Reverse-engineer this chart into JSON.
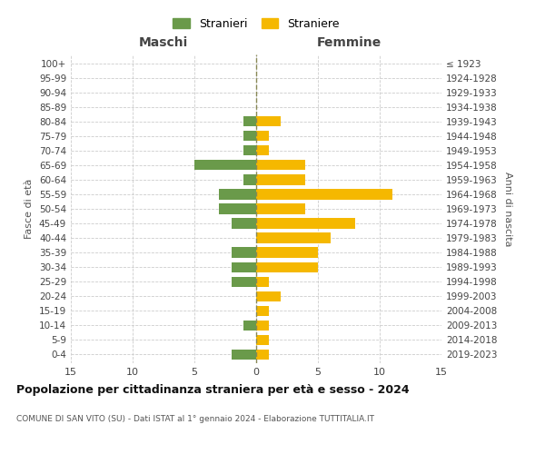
{
  "age_groups": [
    "0-4",
    "5-9",
    "10-14",
    "15-19",
    "20-24",
    "25-29",
    "30-34",
    "35-39",
    "40-44",
    "45-49",
    "50-54",
    "55-59",
    "60-64",
    "65-69",
    "70-74",
    "75-79",
    "80-84",
    "85-89",
    "90-94",
    "95-99",
    "100+"
  ],
  "birth_years": [
    "2019-2023",
    "2014-2018",
    "2009-2013",
    "2004-2008",
    "1999-2003",
    "1994-1998",
    "1989-1993",
    "1984-1988",
    "1979-1983",
    "1974-1978",
    "1969-1973",
    "1964-1968",
    "1959-1963",
    "1954-1958",
    "1949-1953",
    "1944-1948",
    "1939-1943",
    "1934-1938",
    "1929-1933",
    "1924-1928",
    "≤ 1923"
  ],
  "males": [
    2,
    0,
    1,
    0,
    0,
    2,
    2,
    2,
    0,
    2,
    3,
    3,
    1,
    5,
    1,
    1,
    1,
    0,
    0,
    0,
    0
  ],
  "females": [
    1,
    1,
    1,
    1,
    2,
    1,
    5,
    5,
    6,
    8,
    4,
    11,
    4,
    4,
    1,
    1,
    2,
    0,
    0,
    0,
    0
  ],
  "male_color": "#6a9a4a",
  "female_color": "#f5b800",
  "title": "Popolazione per cittadinanza straniera per età e sesso - 2024",
  "subtitle": "COMUNE DI SAN VITO (SU) - Dati ISTAT al 1° gennaio 2024 - Elaborazione TUTTITALIA.IT",
  "legend_male": "Stranieri",
  "legend_female": "Straniere",
  "xlabel_left": "Maschi",
  "xlabel_right": "Femmine",
  "ylabel_left": "Fasce di età",
  "ylabel_right": "Anni di nascita",
  "xlim": 15,
  "background_color": "#ffffff",
  "grid_color": "#cccccc"
}
